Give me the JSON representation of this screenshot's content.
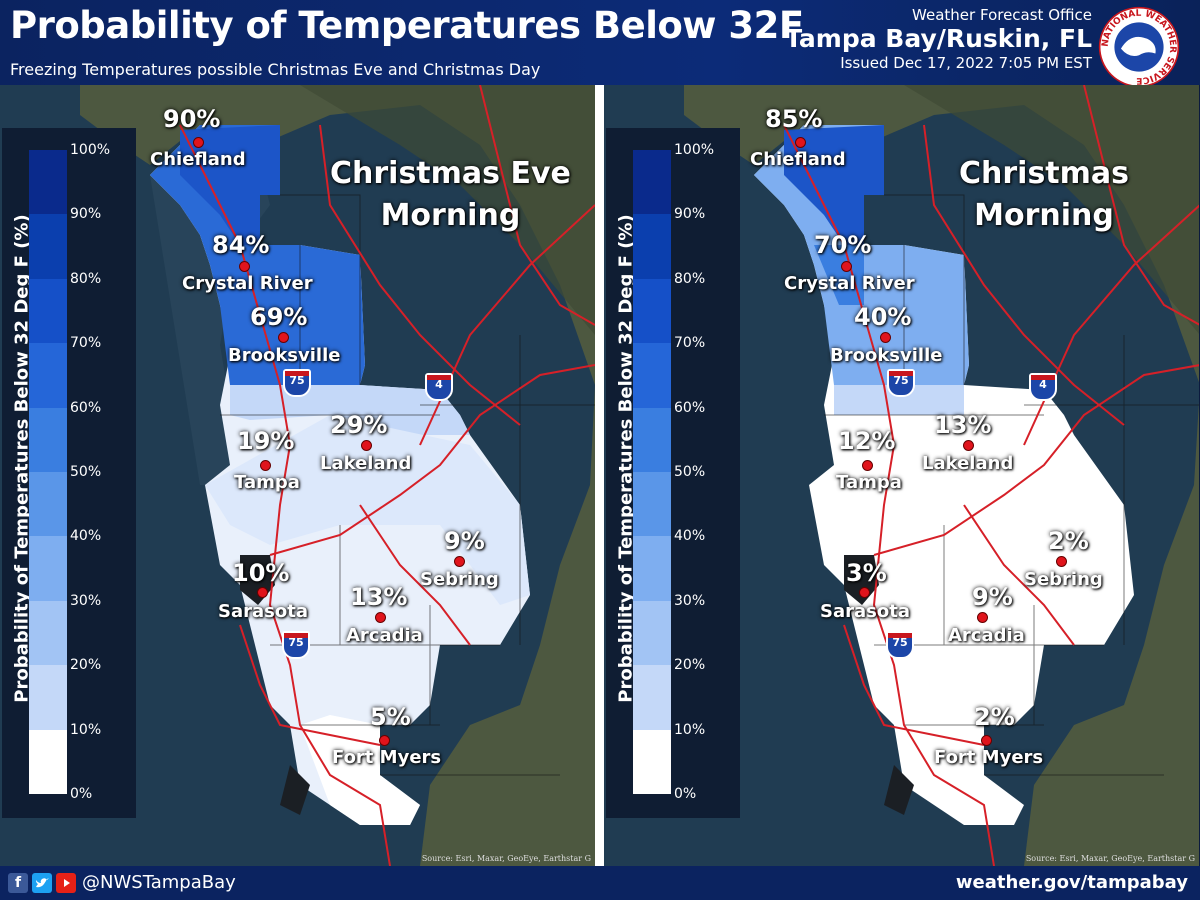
{
  "header": {
    "title": "Probability of Temperatures Below 32F",
    "subtitle": "Freezing Temperatures possible Christmas Eve and Christmas Day",
    "office_line1": "Weather Forecast Office",
    "office_line2": "Tampa Bay/Ruskin, FL",
    "issued": "Issued Dec 17, 2022 7:05 PM EST",
    "logo_text": "NATIONAL WEATHER SERVICE"
  },
  "legend": {
    "title": "Probability of Temperatures Below 32 Deg F (%)",
    "ticks": [
      "100%",
      "90%",
      "80%",
      "70%",
      "60%",
      "50%",
      "40%",
      "30%",
      "20%",
      "10%",
      "0%"
    ],
    "colors": [
      "#0a2a8c",
      "#0b3fae",
      "#1550c8",
      "#2566d8",
      "#3a7ee0",
      "#5a96e8",
      "#7eaef0",
      "#a2c4f4",
      "#c4d8f8",
      "#e2ecfc",
      "#ffffff"
    ]
  },
  "panels": [
    {
      "period_line1": "Christmas Eve",
      "period_line2": "Morning",
      "cities": [
        {
          "name": "Chiefland",
          "value": "90%"
        },
        {
          "name": "Crystal River",
          "value": "84%"
        },
        {
          "name": "Brooksville",
          "value": "69%"
        },
        {
          "name": "Tampa",
          "value": "19%"
        },
        {
          "name": "Lakeland",
          "value": "29%"
        },
        {
          "name": "Sarasota",
          "value": "10%"
        },
        {
          "name": "Arcadia",
          "value": "13%"
        },
        {
          "name": "Sebring",
          "value": "9%"
        },
        {
          "name": "Fort Myers",
          "value": "5%"
        }
      ]
    },
    {
      "period_line1": "Christmas",
      "period_line2": "Morning",
      "cities": [
        {
          "name": "Chiefland",
          "value": "85%"
        },
        {
          "name": "Crystal River",
          "value": "70%"
        },
        {
          "name": "Brooksville",
          "value": "40%"
        },
        {
          "name": "Tampa",
          "value": "12%"
        },
        {
          "name": "Lakeland",
          "value": "13%"
        },
        {
          "name": "Sarasota",
          "value": "3%"
        },
        {
          "name": "Arcadia",
          "value": "9%"
        },
        {
          "name": "Sebring",
          "value": "2%"
        },
        {
          "name": "Fort Myers",
          "value": "2%"
        }
      ]
    }
  ],
  "highways": {
    "i75": "75",
    "i4": "4"
  },
  "credit": "Source: Esri, Maxar, GeoEye, Earthstar G",
  "footer": {
    "handle": "@NWSTampaBay",
    "website": "weather.gov/tampabay",
    "social_icons": [
      "facebook-icon",
      "twitter-icon",
      "youtube-icon"
    ]
  }
}
